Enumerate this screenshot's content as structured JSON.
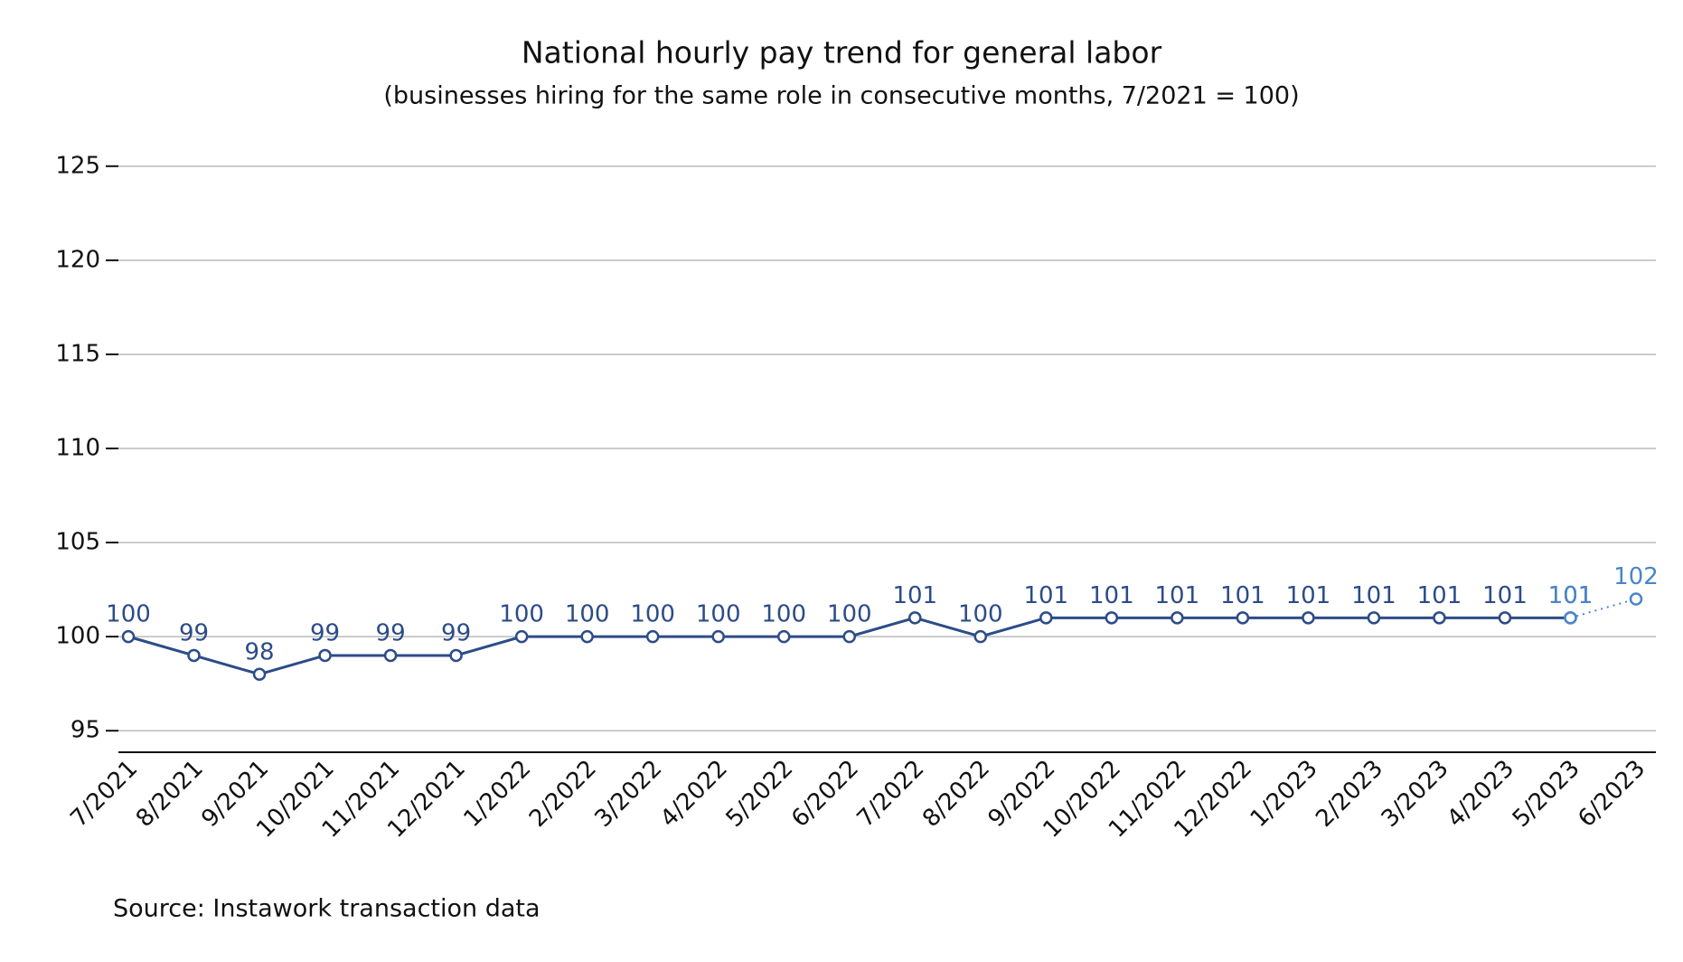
{
  "chart_data": {
    "type": "line",
    "title": "National hourly pay trend for general labor",
    "subtitle": "(businesses hiring for the same role in consecutive months, 7/2021 = 100)",
    "source": "Source: Instawork transaction data",
    "categories": [
      "7/2021",
      "8/2021",
      "9/2021",
      "10/2021",
      "11/2021",
      "12/2021",
      "1/2022",
      "2/2022",
      "3/2022",
      "4/2022",
      "5/2022",
      "6/2022",
      "7/2022",
      "8/2022",
      "9/2022",
      "10/2022",
      "11/2022",
      "12/2022",
      "1/2023",
      "2/2023",
      "3/2023",
      "4/2023",
      "5/2023",
      "6/2023"
    ],
    "series": [
      {
        "color": "#2c4c88",
        "dash": "solid",
        "values": [
          100,
          99,
          98,
          99,
          99,
          99,
          100,
          100,
          100,
          100,
          100,
          100,
          101,
          100,
          101,
          101,
          101,
          101,
          101,
          101,
          101,
          101,
          101,
          null
        ]
      },
      {
        "color": "#4a86c8",
        "dash": "dotted",
        "values": [
          null,
          null,
          null,
          null,
          null,
          null,
          null,
          null,
          null,
          null,
          null,
          null,
          null,
          null,
          null,
          null,
          null,
          null,
          null,
          null,
          null,
          null,
          101,
          102
        ]
      }
    ],
    "ylim": [
      94,
      126
    ],
    "yticks": [
      95,
      100,
      105,
      110,
      115,
      120,
      125
    ],
    "grid": true
  }
}
